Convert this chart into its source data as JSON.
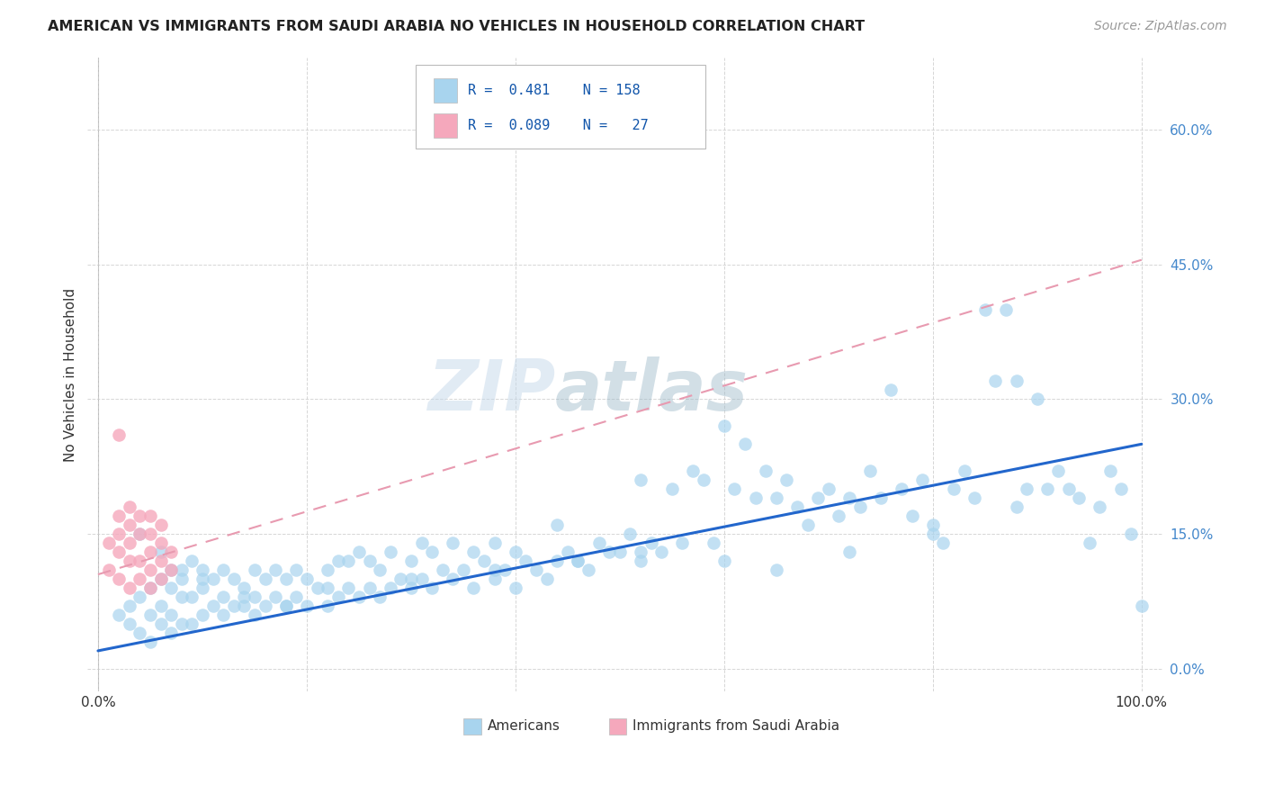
{
  "title": "AMERICAN VS IMMIGRANTS FROM SAUDI ARABIA NO VEHICLES IN HOUSEHOLD CORRELATION CHART",
  "source": "Source: ZipAtlas.com",
  "ylabel": "No Vehicles in Household",
  "xlim": [
    -0.01,
    1.02
  ],
  "ylim": [
    -0.025,
    0.68
  ],
  "blue_color": "#A8D4EE",
  "pink_color": "#F5A8BC",
  "blue_line_color": "#2266CC",
  "pink_line_color": "#E89AB0",
  "right_tick_color": "#4488CC",
  "watermark_zip": "ZIP",
  "watermark_atlas": "atlas",
  "background_color": "#FFFFFF",
  "grid_color": "#CCCCCC",
  "americans_R": 0.481,
  "americans_N": 158,
  "saudi_R": 0.089,
  "saudi_N": 27,
  "blue_line_start_x": 0.0,
  "blue_line_start_y": 0.02,
  "blue_line_end_x": 1.0,
  "blue_line_end_y": 0.25,
  "pink_line_start_x": 0.0,
  "pink_line_start_y": 0.105,
  "pink_line_end_x": 1.0,
  "pink_line_end_y": 0.455,
  "am_x": [
    0.02,
    0.03,
    0.03,
    0.04,
    0.04,
    0.05,
    0.05,
    0.05,
    0.06,
    0.06,
    0.06,
    0.07,
    0.07,
    0.07,
    0.07,
    0.08,
    0.08,
    0.08,
    0.09,
    0.09,
    0.09,
    0.1,
    0.1,
    0.1,
    0.11,
    0.11,
    0.12,
    0.12,
    0.12,
    0.13,
    0.13,
    0.14,
    0.14,
    0.15,
    0.15,
    0.15,
    0.16,
    0.16,
    0.17,
    0.17,
    0.18,
    0.18,
    0.19,
    0.19,
    0.2,
    0.2,
    0.21,
    0.22,
    0.22,
    0.23,
    0.23,
    0.24,
    0.24,
    0.25,
    0.25,
    0.26,
    0.26,
    0.27,
    0.27,
    0.28,
    0.28,
    0.29,
    0.3,
    0.3,
    0.31,
    0.31,
    0.32,
    0.32,
    0.33,
    0.34,
    0.34,
    0.35,
    0.36,
    0.36,
    0.37,
    0.38,
    0.38,
    0.39,
    0.4,
    0.4,
    0.41,
    0.42,
    0.43,
    0.44,
    0.44,
    0.45,
    0.46,
    0.47,
    0.48,
    0.49,
    0.5,
    0.51,
    0.52,
    0.52,
    0.53,
    0.54,
    0.55,
    0.56,
    0.57,
    0.58,
    0.59,
    0.6,
    0.61,
    0.62,
    0.63,
    0.64,
    0.65,
    0.66,
    0.67,
    0.68,
    0.69,
    0.7,
    0.71,
    0.72,
    0.73,
    0.74,
    0.75,
    0.76,
    0.77,
    0.78,
    0.79,
    0.8,
    0.81,
    0.82,
    0.83,
    0.84,
    0.85,
    0.86,
    0.87,
    0.88,
    0.89,
    0.9,
    0.91,
    0.92,
    0.93,
    0.94,
    0.95,
    0.96,
    0.97,
    0.98,
    0.99,
    1.0,
    0.04,
    0.06,
    0.08,
    0.1,
    0.14,
    0.18,
    0.22,
    0.3,
    0.38,
    0.46,
    0.52,
    0.6,
    0.65,
    0.72,
    0.8,
    0.88
  ],
  "am_y": [
    0.06,
    0.05,
    0.07,
    0.04,
    0.08,
    0.03,
    0.06,
    0.09,
    0.05,
    0.07,
    0.1,
    0.04,
    0.06,
    0.09,
    0.11,
    0.05,
    0.08,
    0.1,
    0.05,
    0.08,
    0.12,
    0.06,
    0.09,
    0.11,
    0.07,
    0.1,
    0.06,
    0.08,
    0.11,
    0.07,
    0.1,
    0.07,
    0.09,
    0.06,
    0.08,
    0.11,
    0.07,
    0.1,
    0.08,
    0.11,
    0.07,
    0.1,
    0.08,
    0.11,
    0.07,
    0.1,
    0.09,
    0.07,
    0.11,
    0.08,
    0.12,
    0.09,
    0.12,
    0.08,
    0.13,
    0.09,
    0.12,
    0.08,
    0.11,
    0.09,
    0.13,
    0.1,
    0.09,
    0.12,
    0.1,
    0.14,
    0.09,
    0.13,
    0.11,
    0.1,
    0.14,
    0.11,
    0.09,
    0.13,
    0.12,
    0.1,
    0.14,
    0.11,
    0.09,
    0.13,
    0.12,
    0.11,
    0.1,
    0.12,
    0.16,
    0.13,
    0.12,
    0.11,
    0.14,
    0.13,
    0.13,
    0.15,
    0.12,
    0.21,
    0.14,
    0.13,
    0.2,
    0.14,
    0.22,
    0.21,
    0.14,
    0.27,
    0.2,
    0.25,
    0.19,
    0.22,
    0.19,
    0.21,
    0.18,
    0.16,
    0.19,
    0.2,
    0.17,
    0.19,
    0.18,
    0.22,
    0.19,
    0.31,
    0.2,
    0.17,
    0.21,
    0.15,
    0.14,
    0.2,
    0.22,
    0.19,
    0.4,
    0.32,
    0.4,
    0.32,
    0.2,
    0.3,
    0.2,
    0.22,
    0.2,
    0.19,
    0.14,
    0.18,
    0.22,
    0.2,
    0.15,
    0.07,
    0.15,
    0.13,
    0.11,
    0.1,
    0.08,
    0.07,
    0.09,
    0.1,
    0.11,
    0.12,
    0.13,
    0.12,
    0.11,
    0.13,
    0.16,
    0.18
  ],
  "sa_x": [
    0.01,
    0.01,
    0.02,
    0.02,
    0.02,
    0.02,
    0.03,
    0.03,
    0.03,
    0.03,
    0.03,
    0.04,
    0.04,
    0.04,
    0.04,
    0.05,
    0.05,
    0.05,
    0.05,
    0.05,
    0.06,
    0.06,
    0.06,
    0.06,
    0.07,
    0.07,
    0.02
  ],
  "sa_y": [
    0.11,
    0.14,
    0.1,
    0.13,
    0.15,
    0.17,
    0.09,
    0.12,
    0.14,
    0.16,
    0.18,
    0.1,
    0.12,
    0.15,
    0.17,
    0.09,
    0.11,
    0.13,
    0.15,
    0.17,
    0.1,
    0.12,
    0.14,
    0.16,
    0.11,
    0.13,
    0.26
  ]
}
